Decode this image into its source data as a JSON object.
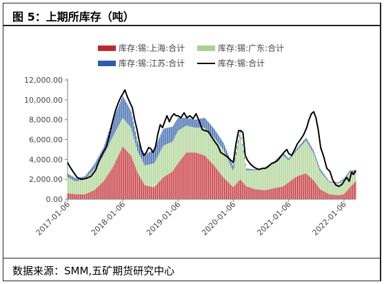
{
  "figure": {
    "title": "图 5：上期所库存（吨）",
    "source": "数据来源：SMM,五矿期货研究中心"
  },
  "colors": {
    "shanghai": "#c0272d",
    "guangdong": "#a9d18e",
    "jiangsu": "#2e5ca8",
    "total": "#000000",
    "axis": "#808080",
    "text": "#444444"
  },
  "chart_data": {
    "type": "bar",
    "stacked": true,
    "title": "",
    "xlabel": "",
    "ylabel": "",
    "ylim": [
      0,
      12000
    ],
    "yticks": [
      0,
      2000,
      4000,
      6000,
      8000,
      10000,
      12000
    ],
    "ytick_labels": [
      "0.00",
      "2,000.00",
      "4,000.00",
      "6,000.00",
      "8,000.00",
      "10,000.00",
      "12,000.00"
    ],
    "xticks": [
      "2017-01-06",
      "2018-01-06",
      "2019-01-06",
      "2020-01-06",
      "2021-01-06",
      "2022-01-06"
    ],
    "x_start": "2017-01-06",
    "x_end": "2022-03-25",
    "legend": {
      "position": "top",
      "entries": [
        "库存:锡:上海:合计",
        "库存:锡:广东:合计",
        "库存:锡:江苏:合计",
        "库存:锡:合计"
      ]
    },
    "series": [
      {
        "name": "库存:锡:上海:合计",
        "kind": "bar",
        "dates": [
          "2017-01-06",
          "2017-03-01",
          "2017-05-01",
          "2017-07-01",
          "2017-09-01",
          "2017-11-01",
          "2018-01-06",
          "2018-03-01",
          "2018-04-15",
          "2018-06-01",
          "2018-08-01",
          "2018-10-01",
          "2018-12-01",
          "2019-01-06",
          "2019-03-01",
          "2019-05-01",
          "2019-07-01",
          "2019-09-01",
          "2019-11-01",
          "2020-01-06",
          "2020-02-20",
          "2020-04-01",
          "2020-06-01",
          "2020-08-01",
          "2020-10-01",
          "2020-12-01",
          "2021-01-06",
          "2021-03-01",
          "2021-05-01",
          "2021-06-20",
          "2021-08-01",
          "2021-10-01",
          "2021-12-01",
          "2022-01-06",
          "2022-02-15",
          "2022-03-25"
        ],
        "values": [
          600,
          500,
          500,
          900,
          1800,
          3200,
          5300,
          4400,
          2600,
          1400,
          1200,
          2200,
          2800,
          3600,
          4700,
          4700,
          4400,
          3400,
          2200,
          1200,
          2000,
          1300,
          1000,
          900,
          1100,
          1300,
          1700,
          2300,
          2600,
          1900,
          1000,
          500,
          400,
          500,
          1200,
          1800
        ]
      },
      {
        "name": "库存:锡:广东:合计",
        "kind": "bar",
        "dates": [
          "2017-01-06",
          "2017-03-01",
          "2017-05-01",
          "2017-07-01",
          "2017-09-01",
          "2017-11-01",
          "2018-01-06",
          "2018-03-01",
          "2018-04-15",
          "2018-06-01",
          "2018-08-01",
          "2018-10-01",
          "2018-12-01",
          "2019-01-06",
          "2019-03-01",
          "2019-05-01",
          "2019-07-01",
          "2019-09-01",
          "2019-11-01",
          "2020-01-06",
          "2020-02-20",
          "2020-04-01",
          "2020-06-01",
          "2020-08-01",
          "2020-10-01",
          "2020-12-01",
          "2021-01-06",
          "2021-03-01",
          "2021-05-01",
          "2021-06-20",
          "2021-08-01",
          "2021-10-01",
          "2021-12-01",
          "2022-01-06",
          "2022-02-15",
          "2022-03-25"
        ],
        "values": [
          1600,
          1300,
          1500,
          2100,
          2600,
          3100,
          2900,
          2800,
          2200,
          2000,
          2400,
          3200,
          3000,
          3300,
          2700,
          2500,
          2800,
          2800,
          2800,
          1600,
          4800,
          1600,
          1900,
          2200,
          2500,
          3100,
          2200,
          2600,
          3300,
          2700,
          1800,
          1200,
          1200,
          1400,
          1500,
          800
        ]
      },
      {
        "name": "库存:锡:江苏:合计",
        "kind": "bar",
        "dates": [
          "2017-01-06",
          "2017-03-01",
          "2017-05-01",
          "2017-07-01",
          "2017-09-01",
          "2017-11-01",
          "2018-01-06",
          "2018-03-01",
          "2018-04-15",
          "2018-06-01",
          "2018-08-01",
          "2018-10-01",
          "2018-12-01",
          "2019-01-06",
          "2019-03-01",
          "2019-05-01",
          "2019-07-01",
          "2019-09-01",
          "2019-11-01",
          "2020-01-06",
          "2020-02-20",
          "2020-04-01",
          "2020-06-01",
          "2020-08-01",
          "2020-10-01",
          "2020-12-01",
          "2021-01-06",
          "2021-03-01",
          "2021-05-01",
          "2021-06-20",
          "2021-08-01",
          "2021-10-01",
          "2021-12-01",
          "2022-01-06",
          "2022-02-15",
          "2022-03-25"
        ],
        "values": [
          400,
          300,
          300,
          500,
          800,
          1700,
          2200,
          1700,
          900,
          1100,
          1400,
          1700,
          1500,
          1300,
          800,
          800,
          1000,
          900,
          700,
          500,
          200,
          200,
          100,
          100,
          200,
          300,
          200,
          200,
          300,
          300,
          300,
          100,
          100,
          200,
          200,
          300
        ]
      },
      {
        "name": "库存:锡:合计",
        "kind": "line",
        "dates": [
          "2017-01-06",
          "2017-01-20",
          "2017-02-10",
          "2017-03-10",
          "2017-04-10",
          "2017-05-10",
          "2017-06-10",
          "2017-07-10",
          "2017-08-01",
          "2017-08-25",
          "2017-09-20",
          "2017-10-10",
          "2017-10-30",
          "2017-11-20",
          "2017-12-10",
          "2017-12-25",
          "2018-01-06",
          "2018-01-20",
          "2018-02-05",
          "2018-02-20",
          "2018-03-10",
          "2018-03-25",
          "2018-04-10",
          "2018-04-25",
          "2018-05-10",
          "2018-05-25",
          "2018-06-10",
          "2018-06-25",
          "2018-07-10",
          "2018-07-25",
          "2018-08-10",
          "2018-08-25",
          "2018-09-10",
          "2018-09-25",
          "2018-10-10",
          "2018-10-25",
          "2018-11-10",
          "2018-11-25",
          "2018-12-10",
          "2018-12-25",
          "2019-01-06",
          "2019-01-25",
          "2019-02-15",
          "2019-03-05",
          "2019-03-25",
          "2019-04-15",
          "2019-05-05",
          "2019-05-25",
          "2019-06-15",
          "2019-07-05",
          "2019-07-25",
          "2019-08-15",
          "2019-09-05",
          "2019-09-25",
          "2019-10-15",
          "2019-11-05",
          "2019-11-25",
          "2019-12-15",
          "2020-01-06",
          "2020-01-25",
          "2020-02-10",
          "2020-02-25",
          "2020-03-10",
          "2020-03-25",
          "2020-04-10",
          "2020-04-25",
          "2020-05-15",
          "2020-06-05",
          "2020-06-25",
          "2020-07-15",
          "2020-08-05",
          "2020-08-25",
          "2020-09-15",
          "2020-10-05",
          "2020-10-25",
          "2020-11-15",
          "2020-12-05",
          "2020-12-25",
          "2021-01-06",
          "2021-01-25",
          "2021-02-15",
          "2021-03-05",
          "2021-03-25",
          "2021-04-15",
          "2021-05-05",
          "2021-05-20",
          "2021-06-05",
          "2021-06-20",
          "2021-07-05",
          "2021-07-20",
          "2021-08-05",
          "2021-08-25",
          "2021-09-15",
          "2021-10-05",
          "2021-10-25",
          "2021-11-15",
          "2021-12-05",
          "2021-12-25",
          "2022-01-06",
          "2022-01-25",
          "2022-02-10",
          "2022-02-25",
          "2022-03-10",
          "2022-03-25"
        ],
        "values": [
          3700,
          3300,
          2800,
          2200,
          2000,
          2100,
          2300,
          2900,
          3800,
          4600,
          5300,
          6500,
          7800,
          9000,
          9800,
          10300,
          10600,
          11000,
          10300,
          9800,
          9200,
          8000,
          7000,
          5800,
          4900,
          4400,
          4700,
          5200,
          5100,
          4700,
          5300,
          6500,
          7500,
          7200,
          7800,
          8400,
          7800,
          8300,
          8600,
          8400,
          8400,
          8200,
          8700,
          8200,
          8400,
          8100,
          8600,
          7900,
          7000,
          6900,
          6800,
          6300,
          5800,
          5400,
          4700,
          4500,
          4300,
          4000,
          3700,
          5700,
          6900,
          6900,
          6700,
          4400,
          3900,
          3600,
          3300,
          3100,
          3000,
          3100,
          3100,
          3300,
          3600,
          3700,
          3900,
          4300,
          4700,
          5000,
          4600,
          4400,
          5000,
          5600,
          6000,
          6500,
          7200,
          8000,
          8600,
          8800,
          8200,
          7000,
          5200,
          4300,
          3100,
          2800,
          1900,
          1400,
          1300,
          1500,
          1800,
          2200,
          1800,
          2700,
          2500,
          2900
        ]
      }
    ]
  }
}
